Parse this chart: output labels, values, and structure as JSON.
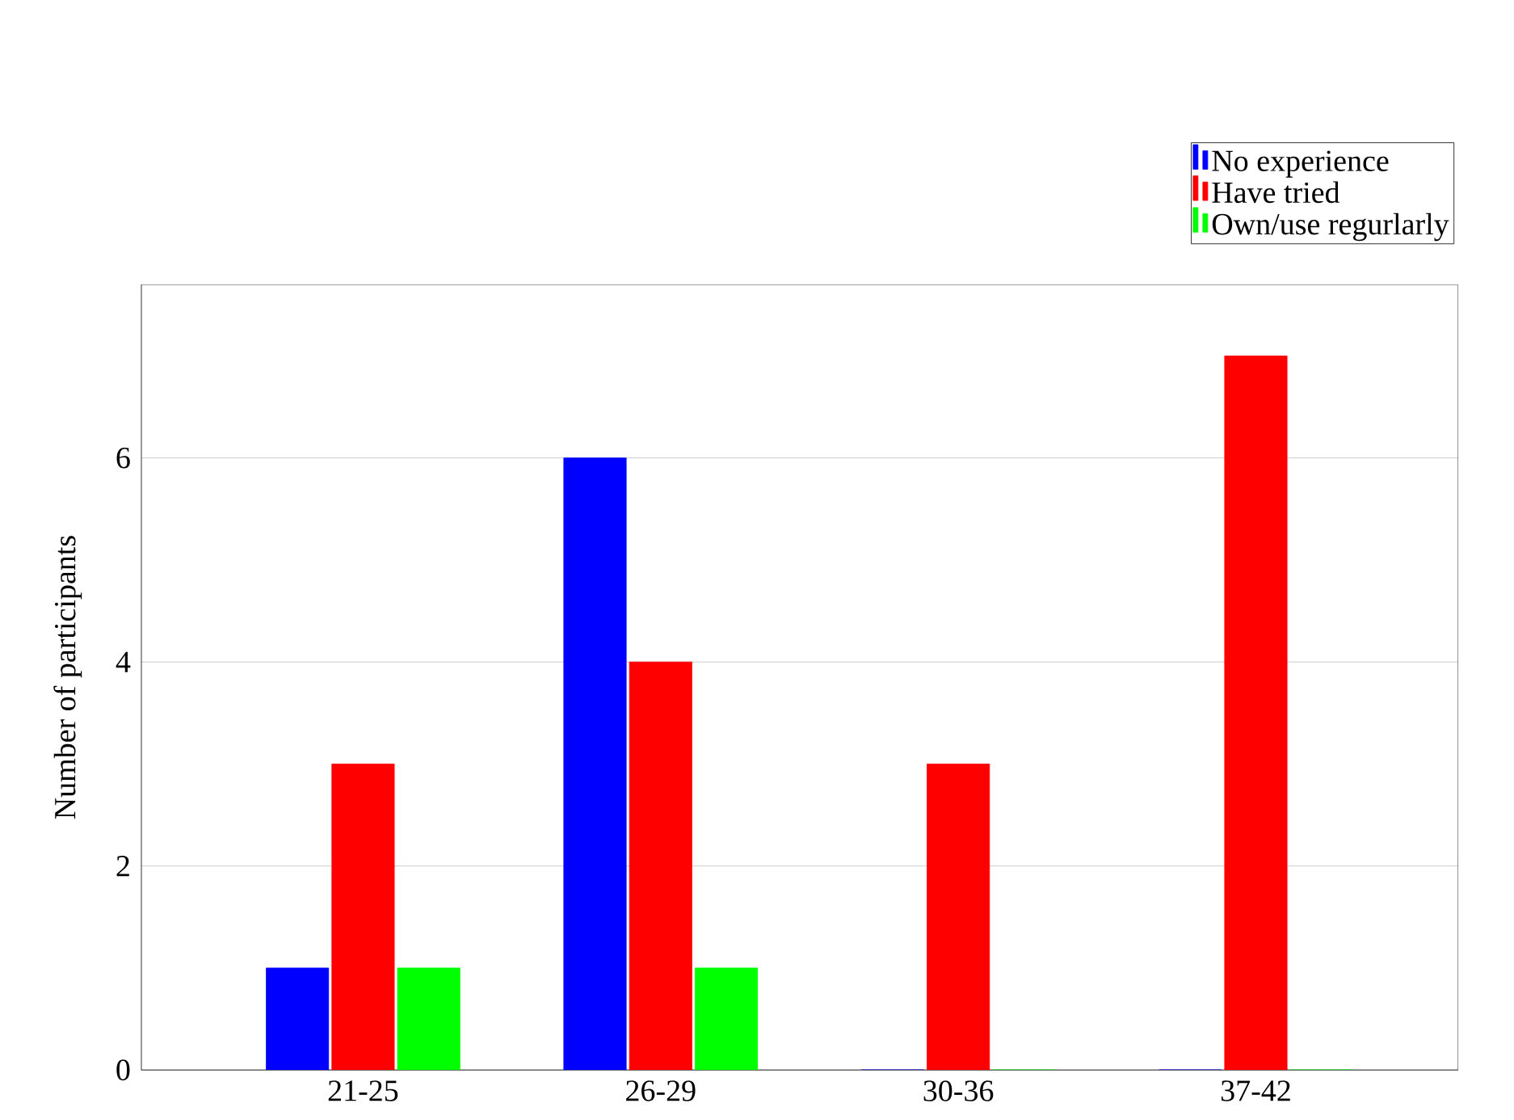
{
  "chart_data": {
    "type": "bar",
    "ylabel": "Number of participants",
    "categories": [
      "21-25",
      "26-29",
      "30-36",
      "37-42"
    ],
    "series": [
      {
        "name": "No experience",
        "color": "#0000ff",
        "values": [
          1,
          6,
          0,
          0
        ]
      },
      {
        "name": "Have tried",
        "color": "#ff0000",
        "values": [
          3,
          4,
          3,
          7
        ]
      },
      {
        "name": "Own/use regurlarly",
        "color": "#00ff00",
        "values": [
          1,
          1,
          0,
          0
        ]
      }
    ],
    "ylim": [
      0,
      7.7
    ],
    "yticks": [
      0,
      2,
      4,
      6
    ],
    "grid": "y",
    "legend": "top right"
  }
}
